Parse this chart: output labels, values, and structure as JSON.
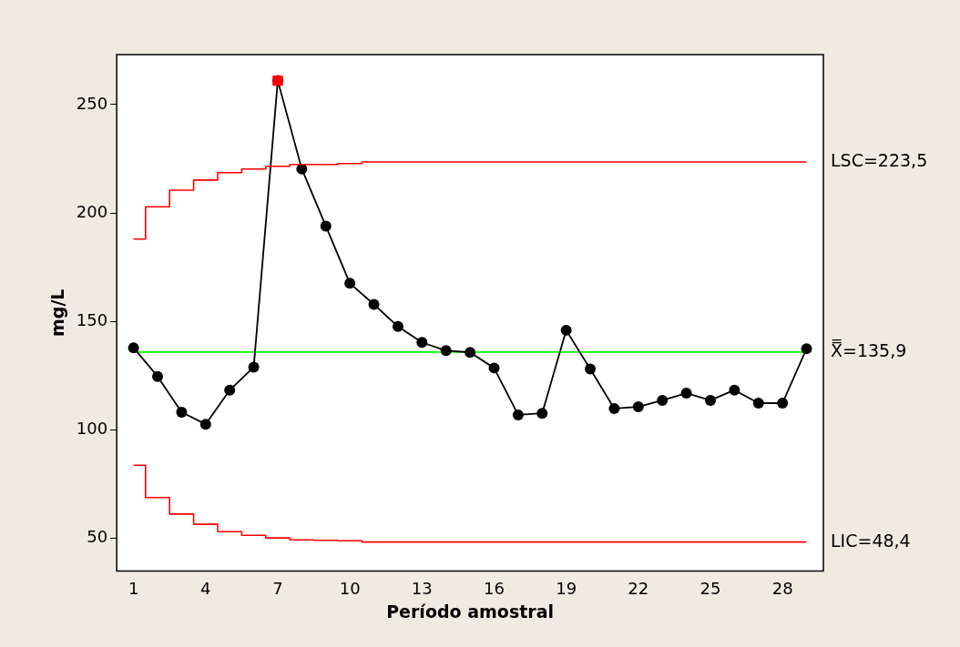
{
  "chart_data": {
    "type": "line",
    "xlabel": "Período amostral",
    "ylabel": "mg/L",
    "x": [
      1,
      2,
      3,
      4,
      5,
      6,
      7,
      8,
      9,
      10,
      11,
      12,
      13,
      14,
      15,
      16,
      17,
      18,
      19,
      20,
      21,
      22,
      23,
      24,
      25,
      26,
      27,
      28,
      29
    ],
    "xlim": [
      0.3,
      29.7
    ],
    "xticks": [
      1,
      4,
      7,
      10,
      13,
      16,
      19,
      22,
      25,
      28
    ],
    "ylim": [
      35,
      273
    ],
    "yticks": [
      50,
      100,
      150,
      200,
      250
    ],
    "grid": false,
    "legend": false,
    "marker": "circle",
    "line_style": "solid",
    "series": [
      {
        "name": "LSC=223,5",
        "type": "step",
        "color": "#ff0000",
        "marker": "none",
        "values": [
          188,
          202.9,
          210.5,
          215.2,
          218.6,
          220.3,
          221.5,
          222.4,
          222.4,
          222.8,
          223.5,
          223.5,
          223.5,
          223.5,
          223.5,
          223.5,
          223.5,
          223.5,
          223.5,
          223.5,
          223.5,
          223.5,
          223.5,
          223.5,
          223.5,
          223.5,
          223.5,
          223.5,
          223.5
        ]
      },
      {
        "name": "LIC=48,4",
        "type": "step",
        "color": "#ff0000",
        "marker": "none",
        "values": [
          83.8,
          68.9,
          61.3,
          56.6,
          53.2,
          51.5,
          50.3,
          49.4,
          49.2,
          49,
          48.4,
          48.4,
          48.4,
          48.4,
          48.4,
          48.4,
          48.4,
          48.4,
          48.4,
          48.4,
          48.4,
          48.4,
          48.4,
          48.4,
          48.4,
          48.4,
          48.4,
          48.4,
          48.4
        ]
      },
      {
        "color": "#000000",
        "values": [
          137.9,
          124.7,
          108.2,
          102.7,
          118.4,
          129,
          261,
          220.3,
          194,
          167.6,
          157.9,
          147.7,
          140.4,
          136.6,
          135.8,
          128.6,
          107,
          107.7,
          146,
          128.1,
          109.9,
          110.7,
          113.7,
          117,
          113.7,
          118.4,
          112.4,
          112.4,
          137.5
        ]
      },
      {
        "type": "scatter",
        "color": "#ff0000",
        "marker": "square",
        "x": [
          7
        ],
        "values": [
          261
        ]
      }
    ],
    "ref_lines": [
      {
        "axis": "y",
        "value": 135.9,
        "label": "X̿=135,9",
        "color": "#00ff00"
      }
    ]
  }
}
